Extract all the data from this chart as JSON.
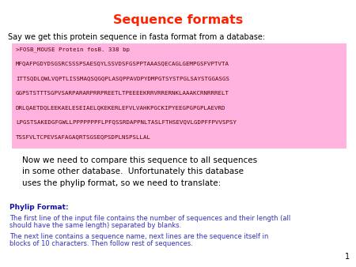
{
  "title": "Sequence formats",
  "title_color": "#ff2200",
  "subtitle": "Say we get this protein sequence in fasta format from a database:",
  "fasta_header": ">FOSB_MOUSE Protein fosB. 338 bp",
  "fasta_lines": [
    "MFQAFPGDYDSGSRCSSSPSAESQYLSSVDSFGSPPTAAASQECAGLGEMPGSFVPTVTA",
    "ITTSQDLQWLVQPTLISSMAQSQGQPLASQPPAVDPYDMPGTSYSTPGLSAYSTGGASGS",
    "GGPSTSTTTSGPVSARPARARPRRPREETLTPEEEEKRRVRRERNKLAAAKCRNRRRELT",
    "DRLQAETDQLEEKAELESEIAELQKEKERLEFVLVAHKPGCKIPYEEGPGPGPLAEVRD",
    "LPGSTSAKEDGFGWLLPPPPPPPFLPFQSSRDAPPNLTASLFTHSEVQVLGDPFFPVVSPSY",
    "TSSFVLTCPEVSAFAGAQRTSGSEQPSDPLNSPSLLAL"
  ],
  "fasta_bg": "#ffb3de",
  "fasta_text_color": "#550000",
  "middle_text_lines": [
    "Now we need to compare this sequence to all sequences",
    "in some other database.  Unfortunately this database",
    "uses the phylip format, so we need to translate:"
  ],
  "phylip_label": "Phylip Format:",
  "phylip_label_color": "#1111aa",
  "phylip_line1a": "The first line of the input file contains the number of sequences and their length (all",
  "phylip_line1b": "should have the same length) separated by blanks.",
  "phylip_line2a": "The next line contains a sequence name, next lines are the sequence itself in",
  "phylip_line2b": "blocks of 10 characters. Then follow rest of sequences.",
  "phylip_text_color": "#3333bb",
  "page_number": "1",
  "bg_color": "#ffffff"
}
